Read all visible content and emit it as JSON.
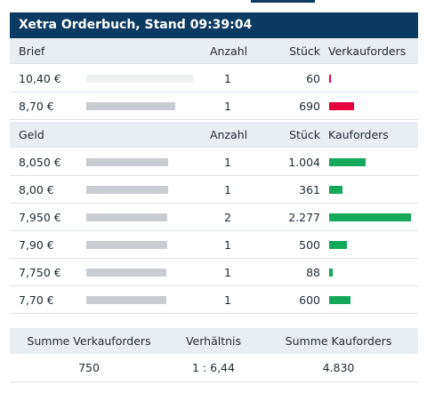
{
  "title": "Xetra Orderbuch, Stand 09:39:04",
  "colors": {
    "header_bg": "#0b3a63",
    "sell": "#e4003c",
    "buy": "#13a85a",
    "volume_bar": "#c9ccd0"
  },
  "brief": {
    "headers": {
      "price": "Brief",
      "count": "Anzahl",
      "pieces": "Stück",
      "orders": "Verkauforders"
    },
    "rows": [
      {
        "price": "10,40 €",
        "count": "1",
        "pieces": "60",
        "volume_fraction": 1.0,
        "order_units": 60
      },
      {
        "price": "8,70 €",
        "count": "1",
        "pieces": "690",
        "volume_fraction": 0.83,
        "order_units": 690
      }
    ]
  },
  "geld": {
    "headers": {
      "price": "Geld",
      "count": "Anzahl",
      "pieces": "Stück",
      "orders": "Kauforders"
    },
    "rows": [
      {
        "price": "8,050 €",
        "count": "1",
        "pieces": "1.004",
        "volume_fraction": 0.77,
        "order_units": 1004
      },
      {
        "price": "8,00 €",
        "count": "1",
        "pieces": "361",
        "volume_fraction": 0.77,
        "order_units": 361
      },
      {
        "price": "7,950 €",
        "count": "2",
        "pieces": "2.277",
        "volume_fraction": 0.76,
        "order_units": 2277
      },
      {
        "price": "7,90 €",
        "count": "1",
        "pieces": "500",
        "volume_fraction": 0.76,
        "order_units": 500
      },
      {
        "price": "7,750 €",
        "count": "1",
        "pieces": "88",
        "volume_fraction": 0.75,
        "order_units": 88
      },
      {
        "price": "7,70 €",
        "count": "1",
        "pieces": "600",
        "volume_fraction": 0.75,
        "order_units": 600
      }
    ]
  },
  "summary": {
    "headers": {
      "sell": "Summe Verkauforders",
      "ratio": "Verhältnis",
      "buy": "Summe Kauforders"
    },
    "values": {
      "sell": "750",
      "ratio": "1 : 6,44",
      "buy": "4.830"
    }
  }
}
